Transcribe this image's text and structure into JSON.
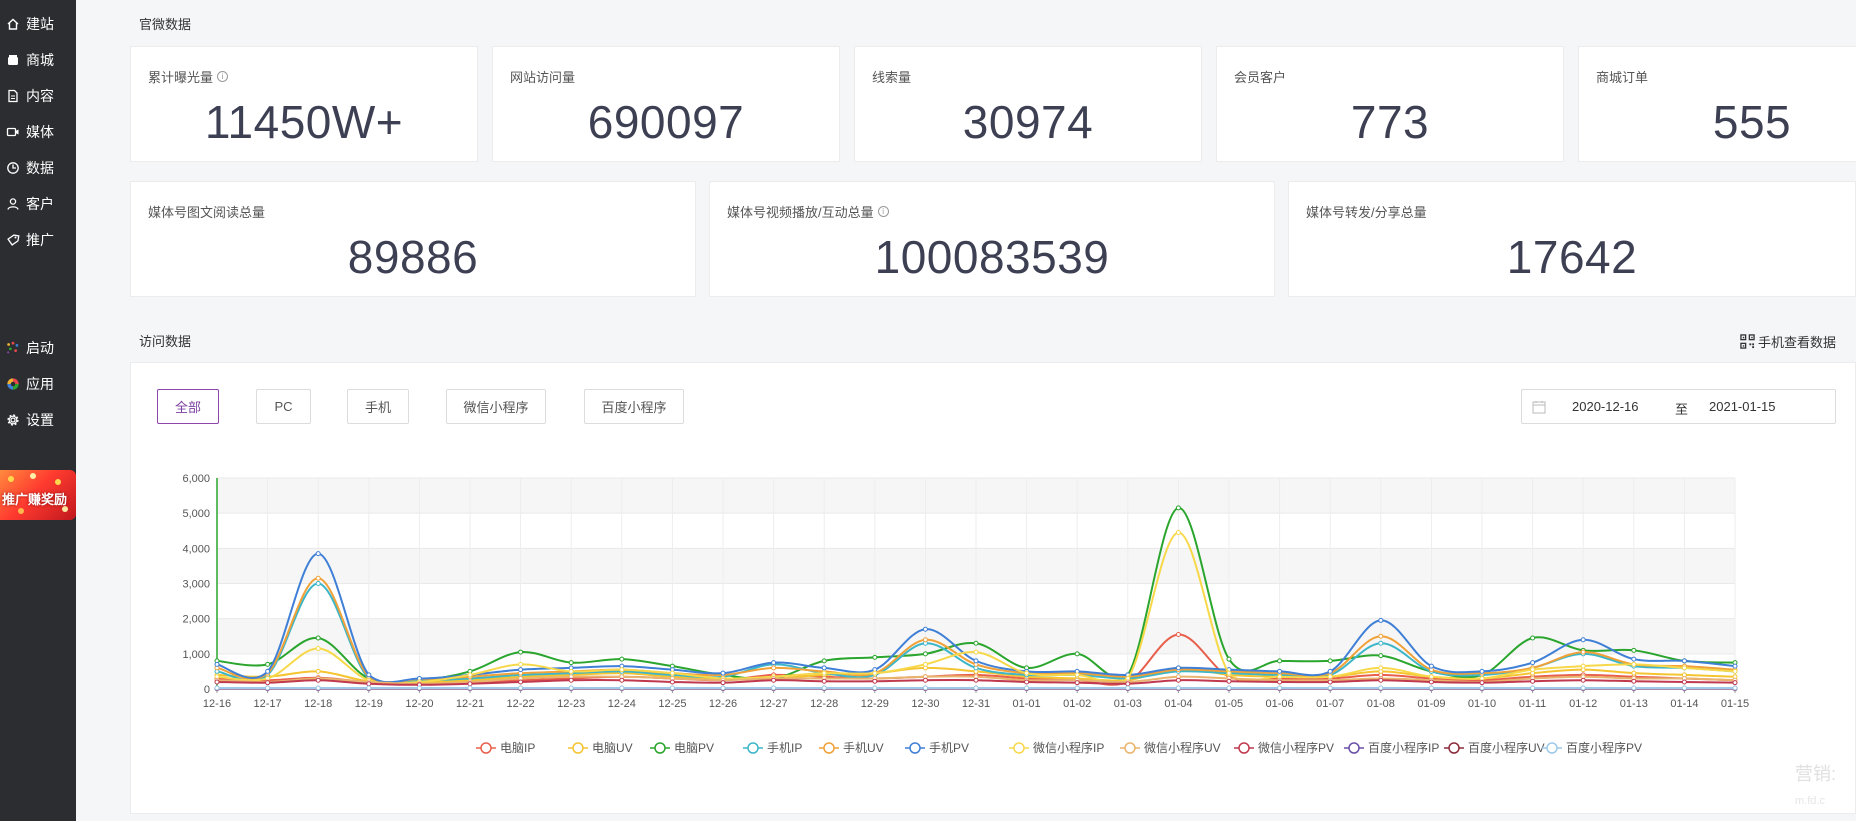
{
  "sidebar": {
    "items": [
      {
        "label": "建站",
        "icon": "home-icon"
      },
      {
        "label": "商城",
        "icon": "shop-icon"
      },
      {
        "label": "内容",
        "icon": "document-icon"
      },
      {
        "label": "媒体",
        "icon": "media-icon"
      },
      {
        "label": "数据",
        "icon": "chart-pie-icon"
      },
      {
        "label": "客户",
        "icon": "user-icon"
      },
      {
        "label": "推广",
        "icon": "tag-icon"
      }
    ],
    "secondary": [
      {
        "label": "启动",
        "icon": "launch-icon"
      },
      {
        "label": "应用",
        "icon": "apps-icon"
      },
      {
        "label": "设置",
        "icon": "gear-icon"
      }
    ],
    "promo_text": "推广赚奖励"
  },
  "overview": {
    "title": "官微数据",
    "cards_row1": [
      {
        "label": "累计曝光量",
        "value": "11450W+",
        "info": true
      },
      {
        "label": "网站访问量",
        "value": "690097",
        "info": false
      },
      {
        "label": "线索量",
        "value": "30974",
        "info": false
      },
      {
        "label": "会员客户",
        "value": "773",
        "info": false
      },
      {
        "label": "商城订单",
        "value": "555",
        "info": false
      }
    ],
    "cards_row2": [
      {
        "label": "媒体号图文阅读总量",
        "value": "89886",
        "info": false
      },
      {
        "label": "媒体号视频播放/互动总量",
        "value": "100083539",
        "info": true
      },
      {
        "label": "媒体号转发/分享总量",
        "value": "17642",
        "info": false
      }
    ]
  },
  "visits": {
    "title": "访问数据",
    "mobile_view_label": "手机查看数据",
    "filters": [
      "全部",
      "PC",
      "手机",
      "微信小程序",
      "百度小程序"
    ],
    "active_filter": "全部",
    "date_start": "2020-12-16",
    "date_sep": "至",
    "date_end": "2021-01-15"
  },
  "watermark": "营销:",
  "watermark_small": "m.fd.c",
  "chart_data": {
    "type": "line",
    "x": [
      "12-16",
      "12-17",
      "12-18",
      "12-19",
      "12-20",
      "12-21",
      "12-22",
      "12-23",
      "12-24",
      "12-25",
      "12-26",
      "12-27",
      "12-28",
      "12-29",
      "12-30",
      "12-31",
      "01-01",
      "01-02",
      "01-03",
      "01-04",
      "01-05",
      "01-06",
      "01-07",
      "01-08",
      "01-09",
      "01-10",
      "01-11",
      "01-12",
      "01-13",
      "01-14",
      "01-15"
    ],
    "ylim": [
      0,
      6000
    ],
    "yticks": [
      0,
      1000,
      2000,
      3000,
      4000,
      5000,
      6000
    ],
    "ytick_labels": [
      "0",
      "1,000",
      "2,000",
      "3,000",
      "4,000",
      "5,000",
      "6,000"
    ],
    "grid": true,
    "legend_position": "bottom",
    "series": [
      {
        "name": "电脑IP",
        "color": "#e8604c",
        "values": [
          300,
          250,
          320,
          200,
          180,
          200,
          250,
          300,
          350,
          300,
          250,
          400,
          350,
          300,
          350,
          400,
          300,
          250,
          200,
          1550,
          350,
          300,
          300,
          400,
          300,
          250,
          350,
          400,
          350,
          300,
          250
        ]
      },
      {
        "name": "电脑UV",
        "color": "#f5c431",
        "values": [
          400,
          350,
          500,
          220,
          200,
          250,
          350,
          400,
          450,
          350,
          300,
          300,
          400,
          450,
          600,
          500,
          350,
          300,
          250,
          600,
          400,
          350,
          350,
          500,
          350,
          300,
          450,
          550,
          450,
          400,
          350
        ]
      },
      {
        "name": "电脑PV",
        "color": "#2aa52d",
        "values": [
          800,
          700,
          1450,
          300,
          250,
          500,
          1050,
          750,
          850,
          650,
          400,
          300,
          800,
          900,
          1000,
          1300,
          600,
          1000,
          400,
          5150,
          850,
          800,
          800,
          950,
          500,
          400,
          1450,
          1100,
          1100,
          800,
          750
        ]
      },
      {
        "name": "手机IP",
        "color": "#3cb6c8",
        "values": [
          500,
          400,
          3000,
          300,
          250,
          300,
          400,
          450,
          500,
          400,
          350,
          700,
          450,
          400,
          1300,
          600,
          400,
          400,
          300,
          500,
          450,
          400,
          400,
          1300,
          500,
          400,
          600,
          1000,
          650,
          600,
          500
        ]
      },
      {
        "name": "手机UV",
        "color": "#f0a138",
        "values": [
          600,
          450,
          3150,
          350,
          280,
          350,
          450,
          500,
          550,
          450,
          400,
          600,
          500,
          450,
          1400,
          700,
          450,
          450,
          350,
          550,
          500,
          450,
          450,
          1500,
          550,
          450,
          600,
          1050,
          700,
          650,
          550
        ]
      },
      {
        "name": "手机PV",
        "color": "#3f7fd6",
        "values": [
          700,
          500,
          3850,
          400,
          300,
          400,
          550,
          600,
          650,
          550,
          450,
          750,
          600,
          550,
          1700,
          800,
          500,
          500,
          400,
          600,
          550,
          500,
          500,
          1950,
          650,
          500,
          750,
          1400,
          850,
          800,
          650
        ]
      },
      {
        "name": "微信小程序IP",
        "color": "#f7d84a",
        "values": [
          350,
          300,
          1150,
          250,
          200,
          400,
          700,
          500,
          550,
          450,
          300,
          350,
          450,
          450,
          700,
          1050,
          450,
          400,
          300,
          4450,
          450,
          350,
          350,
          600,
          350,
          300,
          550,
          650,
          700,
          600,
          500
        ]
      },
      {
        "name": "微信小程序UV",
        "color": "#e9b46e",
        "values": [
          250,
          200,
          300,
          200,
          150,
          200,
          300,
          350,
          350,
          300,
          250,
          300,
          300,
          300,
          350,
          350,
          250,
          250,
          200,
          350,
          300,
          250,
          250,
          300,
          250,
          200,
          300,
          350,
          300,
          300,
          250
        ]
      },
      {
        "name": "微信小程序PV",
        "color": "#c0394f",
        "values": [
          200,
          180,
          250,
          150,
          120,
          150,
          200,
          250,
          250,
          200,
          180,
          250,
          220,
          220,
          250,
          250,
          200,
          180,
          150,
          250,
          220,
          200,
          200,
          250,
          200,
          180,
          220,
          250,
          220,
          200,
          180
        ]
      },
      {
        "name": "百度小程序IP",
        "color": "#6a4fa8",
        "values": [
          10,
          10,
          10,
          10,
          10,
          10,
          10,
          10,
          10,
          10,
          10,
          10,
          10,
          10,
          10,
          10,
          10,
          10,
          10,
          10,
          10,
          10,
          10,
          10,
          10,
          10,
          10,
          10,
          10,
          10,
          10
        ]
      },
      {
        "name": "百度小程序UV",
        "color": "#8b2c3a",
        "values": [
          20,
          20,
          20,
          20,
          20,
          20,
          20,
          20,
          20,
          20,
          20,
          20,
          20,
          20,
          20,
          20,
          20,
          20,
          20,
          20,
          20,
          20,
          20,
          20,
          20,
          20,
          20,
          20,
          20,
          20,
          20
        ]
      },
      {
        "name": "百度小程序PV",
        "color": "#9ec9e8",
        "values": [
          30,
          30,
          30,
          30,
          30,
          30,
          30,
          30,
          30,
          30,
          30,
          30,
          30,
          30,
          30,
          30,
          30,
          30,
          30,
          30,
          30,
          30,
          30,
          30,
          30,
          30,
          30,
          30,
          30,
          30,
          30
        ]
      }
    ]
  }
}
